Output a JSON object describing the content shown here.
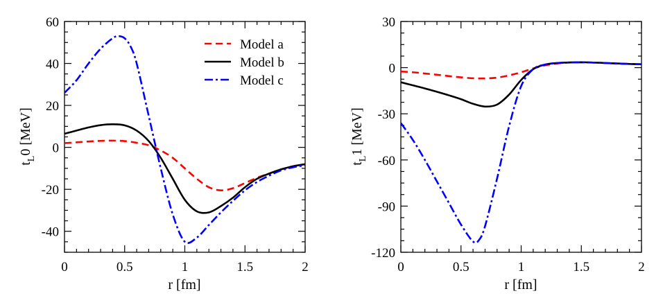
{
  "chart_data": [
    {
      "type": "line",
      "xlabel": "r [fm]",
      "ylabel_main": "t",
      "ylabel_sub": "L",
      "ylabel_tail": "0 [MeV]",
      "xlim": [
        0,
        2
      ],
      "ylim": [
        -50,
        60
      ],
      "xticks": [
        0,
        0.5,
        1,
        1.5,
        2
      ],
      "xtick_labels": [
        "0",
        "0.5",
        "1",
        "1.5",
        "2"
      ],
      "yticks": [
        -40,
        -20,
        0,
        20,
        40,
        60
      ],
      "ytick_labels": [
        "-40",
        "-20",
        "0",
        "20",
        "40",
        "60"
      ],
      "x_minor_step": 0.1,
      "y_minor_step": 5,
      "legend": {
        "position": "top-right"
      },
      "series": [
        {
          "name": "Model a",
          "color": "#ff0000",
          "dash": "dashed",
          "x": [
            0,
            0.1,
            0.2,
            0.3,
            0.4,
            0.5,
            0.6,
            0.7,
            0.8,
            0.9,
            1.0,
            1.1,
            1.2,
            1.3,
            1.4,
            1.5,
            1.6,
            1.7,
            1.8,
            1.9,
            2.0
          ],
          "y": [
            2.0,
            2.4,
            2.8,
            3.1,
            3.2,
            3.0,
            2.2,
            1.0,
            -1.5,
            -5.0,
            -10.0,
            -15.0,
            -19.0,
            -20.5,
            -19.5,
            -17.0,
            -14.5,
            -12.5,
            -10.5,
            -9.0,
            -8.0
          ]
        },
        {
          "name": "Model b",
          "color": "#000000",
          "dash": "solid",
          "x": [
            0,
            0.1,
            0.2,
            0.3,
            0.4,
            0.5,
            0.6,
            0.7,
            0.8,
            0.9,
            1.0,
            1.1,
            1.2,
            1.3,
            1.4,
            1.5,
            1.6,
            1.7,
            1.8,
            1.9,
            2.0
          ],
          "y": [
            6.5,
            8.0,
            9.5,
            10.6,
            11.0,
            10.5,
            8.0,
            3.0,
            -5.0,
            -15.0,
            -25.0,
            -30.5,
            -31.0,
            -28.0,
            -24.0,
            -19.0,
            -15.0,
            -12.5,
            -10.5,
            -9.0,
            -8.0
          ]
        },
        {
          "name": "Model c",
          "color": "#0000ff",
          "dash": "dashdot",
          "x": [
            0,
            0.1,
            0.2,
            0.3,
            0.4,
            0.45,
            0.5,
            0.55,
            0.6,
            0.7,
            0.8,
            0.9,
            1.0,
            1.1,
            1.2,
            1.3,
            1.4,
            1.5,
            1.6,
            1.7,
            1.8,
            1.9,
            2.0
          ],
          "y": [
            26.0,
            32.0,
            40.0,
            47.0,
            52.0,
            53.0,
            52.0,
            48.0,
            40.0,
            15.0,
            -10.0,
            -32.0,
            -45.0,
            -43.0,
            -37.0,
            -31.0,
            -25.5,
            -20.5,
            -16.5,
            -13.5,
            -11.0,
            -9.5,
            -8.5
          ]
        }
      ]
    },
    {
      "type": "line",
      "xlabel": "r [fm]",
      "ylabel_main": "t",
      "ylabel_sub": "L",
      "ylabel_tail": "1 [MeV]",
      "xlim": [
        0,
        2
      ],
      "ylim": [
        -120,
        30
      ],
      "xticks": [
        0,
        0.5,
        1,
        1.5,
        2
      ],
      "xtick_labels": [
        "0",
        "0.5",
        "1",
        "1.5",
        "2"
      ],
      "yticks": [
        -120,
        -90,
        -60,
        -30,
        0,
        30
      ],
      "ytick_labels": [
        "-120",
        "-90",
        "-60",
        "-30",
        "0",
        "30"
      ],
      "x_minor_step": 0.1,
      "y_minor_step": 7.5,
      "series": [
        {
          "name": "Model a",
          "color": "#ff0000",
          "dash": "dashed",
          "x": [
            0,
            0.1,
            0.2,
            0.3,
            0.4,
            0.5,
            0.6,
            0.7,
            0.8,
            0.9,
            1.0,
            1.1,
            1.2,
            1.3,
            1.4,
            1.5,
            1.6,
            1.7,
            1.8,
            1.9,
            2.0
          ],
          "y": [
            -2.5,
            -3.0,
            -3.8,
            -4.6,
            -5.5,
            -6.3,
            -6.9,
            -7.0,
            -6.5,
            -5.0,
            -3.0,
            -0.5,
            1.5,
            2.7,
            3.3,
            3.4,
            3.3,
            3.0,
            2.7,
            2.4,
            2.2
          ]
        },
        {
          "name": "Model b",
          "color": "#000000",
          "dash": "solid",
          "x": [
            0,
            0.1,
            0.2,
            0.3,
            0.4,
            0.5,
            0.6,
            0.7,
            0.8,
            0.9,
            1.0,
            1.1,
            1.2,
            1.3,
            1.4,
            1.5,
            1.6,
            1.7,
            1.8,
            1.9,
            2.0
          ],
          "y": [
            -9.5,
            -11.5,
            -13.5,
            -15.7,
            -18.0,
            -20.5,
            -23.5,
            -25.3,
            -24.0,
            -17.5,
            -8.0,
            -1.0,
            2.0,
            3.0,
            3.4,
            3.5,
            3.3,
            3.0,
            2.7,
            2.4,
            2.2
          ]
        },
        {
          "name": "Model c",
          "color": "#0000ff",
          "dash": "dashdot",
          "x": [
            0,
            0.1,
            0.2,
            0.3,
            0.4,
            0.5,
            0.6,
            0.65,
            0.7,
            0.8,
            0.9,
            1.0,
            1.1,
            1.2,
            1.3,
            1.4,
            1.5,
            1.6,
            1.7,
            1.8,
            1.9,
            2.0
          ],
          "y": [
            -36.0,
            -47.0,
            -60.0,
            -74.0,
            -88.0,
            -102.0,
            -113.0,
            -112.0,
            -103.0,
            -72.0,
            -38.0,
            -12.0,
            -1.0,
            2.0,
            3.0,
            3.3,
            3.5,
            3.3,
            3.0,
            2.7,
            2.4,
            2.2
          ]
        }
      ]
    }
  ]
}
